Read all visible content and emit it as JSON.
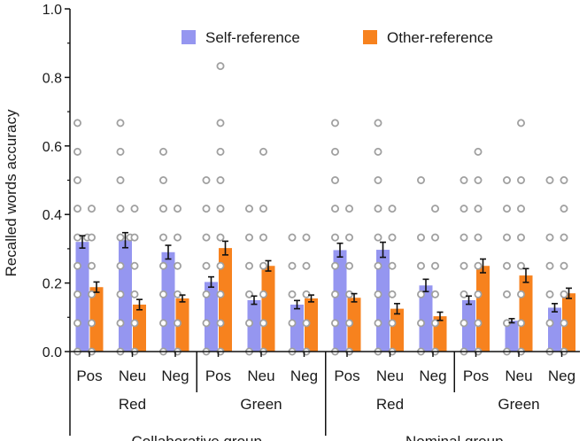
{
  "chart_data": {
    "type": "bar",
    "title": "",
    "ylabel": "Recalled words accuracy",
    "xlabel": "",
    "ylim": [
      0,
      1.0
    ],
    "yticks": [
      "0.0",
      "0.2",
      "0.4",
      "0.6",
      "0.8",
      "1.0"
    ],
    "legend": {
      "placement": "top-right",
      "entries": [
        "Self-reference",
        "Other-reference"
      ]
    },
    "colors": {
      "self": "#9596f0",
      "other": "#f7821e",
      "dots": "#a0a0a0",
      "axis": "#111111"
    },
    "groups": [
      {
        "name": "Collaborative group",
        "subgroups": [
          {
            "name": "Red",
            "categories": [
              {
                "label": "Pos",
                "self": 0.32,
                "self_err": 0.018,
                "other": 0.188,
                "other_err": 0.015
              },
              {
                "label": "Neu",
                "self": 0.325,
                "self_err": 0.022,
                "other": 0.137,
                "other_err": 0.015
              },
              {
                "label": "Neg",
                "self": 0.29,
                "self_err": 0.02,
                "other": 0.155,
                "other_err": 0.01
              }
            ]
          },
          {
            "name": "Green",
            "categories": [
              {
                "label": "Pos",
                "self": 0.203,
                "self_err": 0.015,
                "other": 0.302,
                "other_err": 0.02
              },
              {
                "label": "Neu",
                "self": 0.15,
                "self_err": 0.012,
                "other": 0.25,
                "other_err": 0.015
              },
              {
                "label": "Neg",
                "self": 0.137,
                "self_err": 0.012,
                "other": 0.155,
                "other_err": 0.01
              }
            ]
          }
        ]
      },
      {
        "name": "Nominal group",
        "subgroups": [
          {
            "name": "Red",
            "categories": [
              {
                "label": "Pos",
                "self": 0.296,
                "self_err": 0.02,
                "other": 0.157,
                "other_err": 0.012
              },
              {
                "label": "Neu",
                "self": 0.297,
                "self_err": 0.022,
                "other": 0.125,
                "other_err": 0.015
              },
              {
                "label": "Neg",
                "self": 0.193,
                "self_err": 0.018,
                "other": 0.103,
                "other_err": 0.012
              }
            ]
          },
          {
            "name": "Green",
            "categories": [
              {
                "label": "Pos",
                "self": 0.15,
                "self_err": 0.012,
                "other": 0.25,
                "other_err": 0.02
              },
              {
                "label": "Neu",
                "self": 0.09,
                "self_err": 0.006,
                "other": 0.222,
                "other_err": 0.02
              },
              {
                "label": "Neg",
                "self": 0.128,
                "self_err": 0.012,
                "other": 0.17,
                "other_err": 0.015
              }
            ]
          }
        ]
      }
    ],
    "individual_points": {
      "levels": [
        0,
        0.083,
        0.167,
        0.25,
        0.333,
        0.417,
        0.5,
        0.583,
        0.667,
        0.833
      ],
      "series": [
        [
          [
            0,
            0.083,
            0.167,
            0.25,
            0.333,
            0.333,
            0.417,
            0.5,
            0.583,
            0.667
          ],
          [
            0,
            0.083,
            0.167,
            0.25,
            0.333,
            0.417
          ]
        ],
        [
          [
            0,
            0.083,
            0.167,
            0.25,
            0.333,
            0.333,
            0.417,
            0.5,
            0.583,
            0.667
          ],
          [
            0,
            0.083,
            0.167,
            0.25,
            0.333,
            0.417
          ]
        ],
        [
          [
            0,
            0.083,
            0.167,
            0.25,
            0.333,
            0.417,
            0.5,
            0.583
          ],
          [
            0,
            0.083,
            0.167,
            0.25,
            0.333,
            0.417
          ]
        ],
        [
          [
            0,
            0.083,
            0.167,
            0.25,
            0.333,
            0.417,
            0.5
          ],
          [
            0,
            0.083,
            0.167,
            0.25,
            0.333,
            0.417,
            0.5,
            0.583,
            0.667,
            0.833
          ]
        ],
        [
          [
            0,
            0.083,
            0.167,
            0.25,
            0.333,
            0.417
          ],
          [
            0,
            0.083,
            0.167,
            0.25,
            0.333,
            0.417,
            0.583
          ]
        ],
        [
          [
            0,
            0.083,
            0.167,
            0.25,
            0.333
          ],
          [
            0,
            0.083,
            0.167,
            0.25,
            0.333
          ]
        ],
        [
          [
            0,
            0.083,
            0.167,
            0.25,
            0.333,
            0.417,
            0.5,
            0.583,
            0.667
          ],
          [
            0,
            0.083,
            0.167,
            0.25,
            0.333,
            0.417
          ]
        ],
        [
          [
            0,
            0.083,
            0.167,
            0.25,
            0.333,
            0.417,
            0.5,
            0.583,
            0.667
          ],
          [
            0,
            0.083,
            0.167,
            0.25,
            0.333,
            0.417
          ]
        ],
        [
          [
            0,
            0.083,
            0.167,
            0.25,
            0.333,
            0.5
          ],
          [
            0,
            0.083,
            0.167,
            0.25,
            0.333,
            0.417
          ]
        ],
        [
          [
            0,
            0.083,
            0.167,
            0.25,
            0.333,
            0.417,
            0.5
          ],
          [
            0,
            0.083,
            0.167,
            0.25,
            0.333,
            0.417,
            0.5,
            0.583
          ]
        ],
        [
          [
            0,
            0.083,
            0.167,
            0.25,
            0.333,
            0.417,
            0.5
          ],
          [
            0,
            0.083,
            0.167,
            0.25,
            0.333,
            0.417,
            0.5,
            0.667
          ]
        ],
        [
          [
            0,
            0.083,
            0.167,
            0.25,
            0.333,
            0.5
          ],
          [
            0,
            0.083,
            0.167,
            0.25,
            0.333,
            0.417,
            0.5
          ]
        ]
      ]
    }
  }
}
